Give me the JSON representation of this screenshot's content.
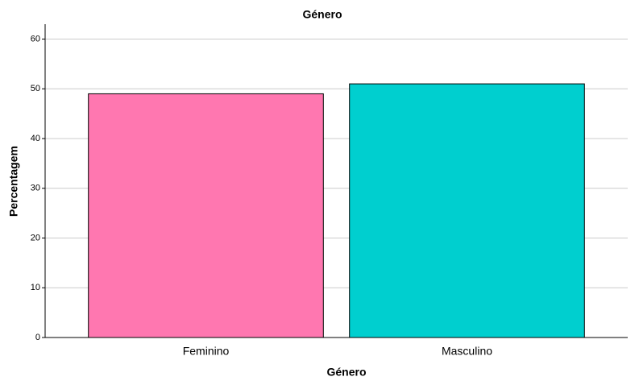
{
  "chart_data": {
    "type": "bar",
    "title": "Género",
    "x_label": "Género",
    "y_label": "Percentagem",
    "categories": [
      "Feminino",
      "Masculino"
    ],
    "values": [
      49,
      51
    ],
    "colors": [
      "#ff77b0",
      "#00cfcf"
    ],
    "ylim": [
      0,
      63
    ],
    "yticks": [
      0,
      10,
      20,
      30,
      40,
      50,
      60
    ],
    "grid": true
  }
}
